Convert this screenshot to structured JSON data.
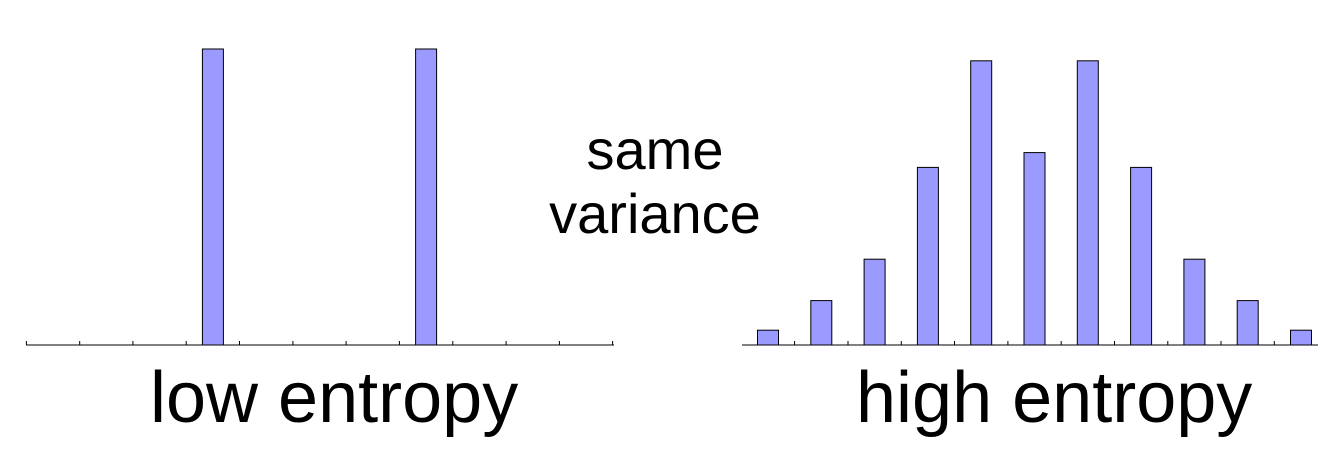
{
  "note": {
    "line1": "same",
    "line2": "variance"
  },
  "colors": {
    "bar_fill": "#9b9bff",
    "bar_stroke": "#000000",
    "axis": "#000000"
  },
  "chart_data": [
    {
      "type": "bar",
      "xlabel": "low entropy",
      "x": [
        1,
        2,
        3,
        4,
        5,
        6,
        7,
        8,
        9,
        10,
        11
      ],
      "values": [
        0,
        0,
        0,
        1,
        0,
        0,
        0,
        1,
        0,
        0,
        0
      ],
      "ylim": [
        0,
        1
      ],
      "grid": false
    },
    {
      "type": "bar",
      "xlabel": "high entropy",
      "x": [
        1,
        2,
        3,
        4,
        5,
        6,
        7,
        8,
        9,
        10,
        11
      ],
      "values": [
        0.05,
        0.15,
        0.29,
        0.6,
        0.96,
        0.65,
        0.96,
        0.6,
        0.29,
        0.15,
        0.05
      ],
      "ylim": [
        0,
        1
      ],
      "grid": false
    }
  ]
}
